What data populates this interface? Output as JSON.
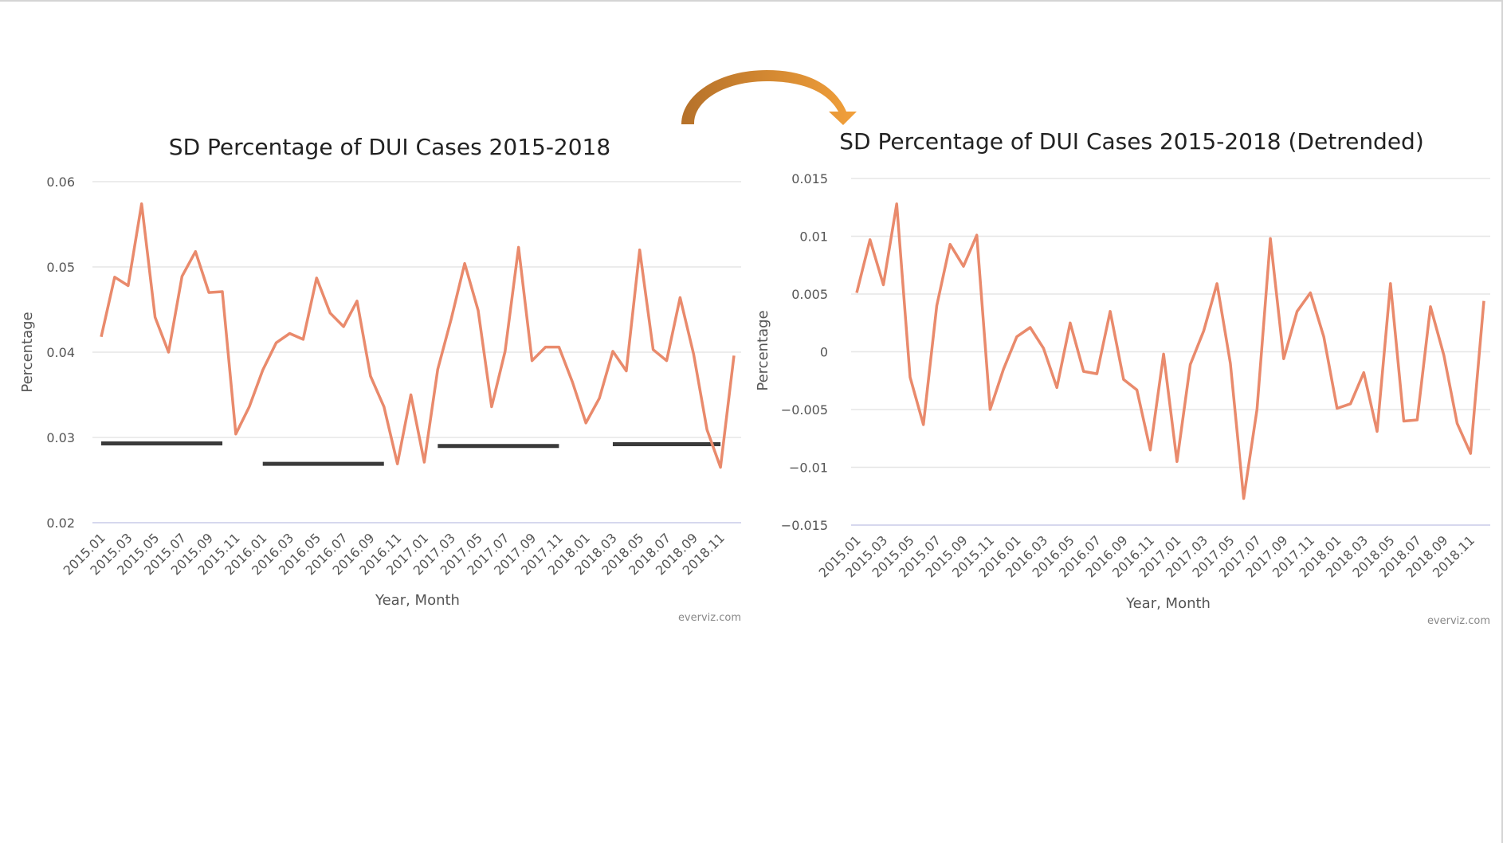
{
  "chart_data": [
    {
      "type": "line",
      "title": "SD Percentage of DUI Cases 2015-2018",
      "xlabel": "Year, Month",
      "ylabel": "Percentage",
      "ylim": [
        0.02,
        0.06
      ],
      "y_ticks": [
        "0.06",
        "0.05",
        "0.04",
        "0.03",
        "0.02"
      ],
      "y_tick_values": [
        0.06,
        0.05,
        0.04,
        0.03,
        0.02
      ],
      "grid": true,
      "credit": "everviz.com",
      "series_color": "#e98a6c",
      "categories": [
        "2015.01",
        "2015.02",
        "2015.03",
        "2015.04",
        "2015.05",
        "2015.06",
        "2015.07",
        "2015.08",
        "2015.09",
        "2015.10",
        "2015.11",
        "2015.12",
        "2016.01",
        "2016.02",
        "2016.03",
        "2016.04",
        "2016.05",
        "2016.06",
        "2016.07",
        "2016.08",
        "2016.09",
        "2016.10",
        "2016.11",
        "2016.12",
        "2017.01",
        "2017.02",
        "2017.03",
        "2017.04",
        "2017.05",
        "2017.06",
        "2017.07",
        "2017.08",
        "2017.09",
        "2017.10",
        "2017.11",
        "2017.12",
        "2018.01",
        "2018.02",
        "2018.03",
        "2018.04",
        "2018.05",
        "2018.06",
        "2018.07",
        "2018.08",
        "2018.09",
        "2018.10",
        "2018.11",
        "2018.12"
      ],
      "x_tick_labels": [
        "2015.01",
        "2015.03",
        "2015.05",
        "2015.07",
        "2015.09",
        "2015.11",
        "2016.01",
        "2016.03",
        "2016.05",
        "2016.07",
        "2016.09",
        "2016.11",
        "2017.01",
        "2017.03",
        "2017.05",
        "2017.07",
        "2017.09",
        "2017.11",
        "2018.01",
        "2018.03",
        "2018.05",
        "2018.07",
        "2018.09",
        "2018.11"
      ],
      "series": [
        {
          "values": [
            0.0418,
            0.0488,
            0.0478,
            0.0574,
            0.0441,
            0.04,
            0.0489,
            0.0518,
            0.047,
            0.0471,
            0.0304,
            0.0336,
            0.0379,
            0.0411,
            0.0422,
            0.0415,
            0.0487,
            0.0446,
            0.043,
            0.046,
            0.0372,
            0.0336,
            0.0269,
            0.035,
            0.0271,
            0.038,
            0.0439,
            0.0504,
            0.0449,
            0.0336,
            0.0401,
            0.0523,
            0.039,
            0.0406,
            0.0406,
            0.0365,
            0.0317,
            0.0346,
            0.0401,
            0.0378,
            0.052,
            0.0403,
            0.039,
            0.0464,
            0.0398,
            0.0309,
            0.0265,
            0.0396
          ]
        }
      ],
      "annotation_segments": [
        {
          "x": [
            "2015.01",
            "2015.10"
          ],
          "y": 0.0293
        },
        {
          "x": [
            "2016.01",
            "2016.10"
          ],
          "y": 0.0269
        },
        {
          "x": [
            "2017.02",
            "2017.11"
          ],
          "y": 0.029
        },
        {
          "x": [
            "2018.03",
            "2018.11"
          ],
          "y": 0.0292
        }
      ]
    },
    {
      "type": "line",
      "title": "SD Percentage of DUI Cases 2015-2018 (Detrended)",
      "xlabel": "Year, Month",
      "ylabel": "Percentage",
      "ylim": [
        -0.015,
        0.015
      ],
      "y_ticks": [
        "0.015",
        "0.01",
        "0.005",
        "0",
        "−0.005",
        "−0.01",
        "−0.015"
      ],
      "y_tick_values": [
        0.015,
        0.01,
        0.005,
        0,
        -0.005,
        -0.01,
        -0.015
      ],
      "grid": true,
      "credit": "everviz.com",
      "series_color": "#e98a6c",
      "categories": [
        "2015.01",
        "2015.02",
        "2015.03",
        "2015.04",
        "2015.05",
        "2015.06",
        "2015.07",
        "2015.08",
        "2015.09",
        "2015.10",
        "2015.11",
        "2015.12",
        "2016.01",
        "2016.02",
        "2016.03",
        "2016.04",
        "2016.05",
        "2016.06",
        "2016.07",
        "2016.08",
        "2016.09",
        "2016.10",
        "2016.11",
        "2016.12",
        "2017.01",
        "2017.02",
        "2017.03",
        "2017.04",
        "2017.05",
        "2017.06",
        "2017.07",
        "2017.08",
        "2017.09",
        "2017.10",
        "2017.11",
        "2017.12",
        "2018.01",
        "2018.02",
        "2018.03",
        "2018.04",
        "2018.05",
        "2018.06",
        "2018.07",
        "2018.08",
        "2018.09",
        "2018.10",
        "2018.11",
        "2018.12"
      ],
      "x_tick_labels": [
        "2015.01",
        "2015.03",
        "2015.05",
        "2015.07",
        "2015.09",
        "2015.11",
        "2016.01",
        "2016.03",
        "2016.05",
        "2016.07",
        "2016.09",
        "2016.11",
        "2017.01",
        "2017.03",
        "2017.05",
        "2017.07",
        "2017.09",
        "2017.11",
        "2018.01",
        "2018.03",
        "2018.05",
        "2018.07",
        "2018.09",
        "2018.11"
      ],
      "series": [
        {
          "values": [
            0.0051,
            0.0097,
            0.0058,
            0.0128,
            -0.0022,
            -0.0063,
            0.004,
            0.0093,
            0.0074,
            0.0101,
            -0.005,
            -0.0015,
            0.0013,
            0.0021,
            0.0003,
            -0.0031,
            0.0025,
            -0.0017,
            -0.0019,
            0.0035,
            -0.0024,
            -0.0033,
            -0.0085,
            -0.0002,
            -0.0095,
            -0.0011,
            0.0018,
            0.0059,
            -0.001,
            -0.0127,
            -0.005,
            0.0098,
            -0.0006,
            0.0035,
            0.0051,
            0.0013,
            -0.0049,
            -0.0045,
            -0.0018,
            -0.0069,
            0.0059,
            -0.006,
            -0.0059,
            0.0039,
            -0.0003,
            -0.0062,
            -0.0088,
            0.0044
          ]
        }
      ]
    }
  ],
  "arrow_colors": {
    "start": "#b5712a",
    "end": "#f2a03a"
  }
}
